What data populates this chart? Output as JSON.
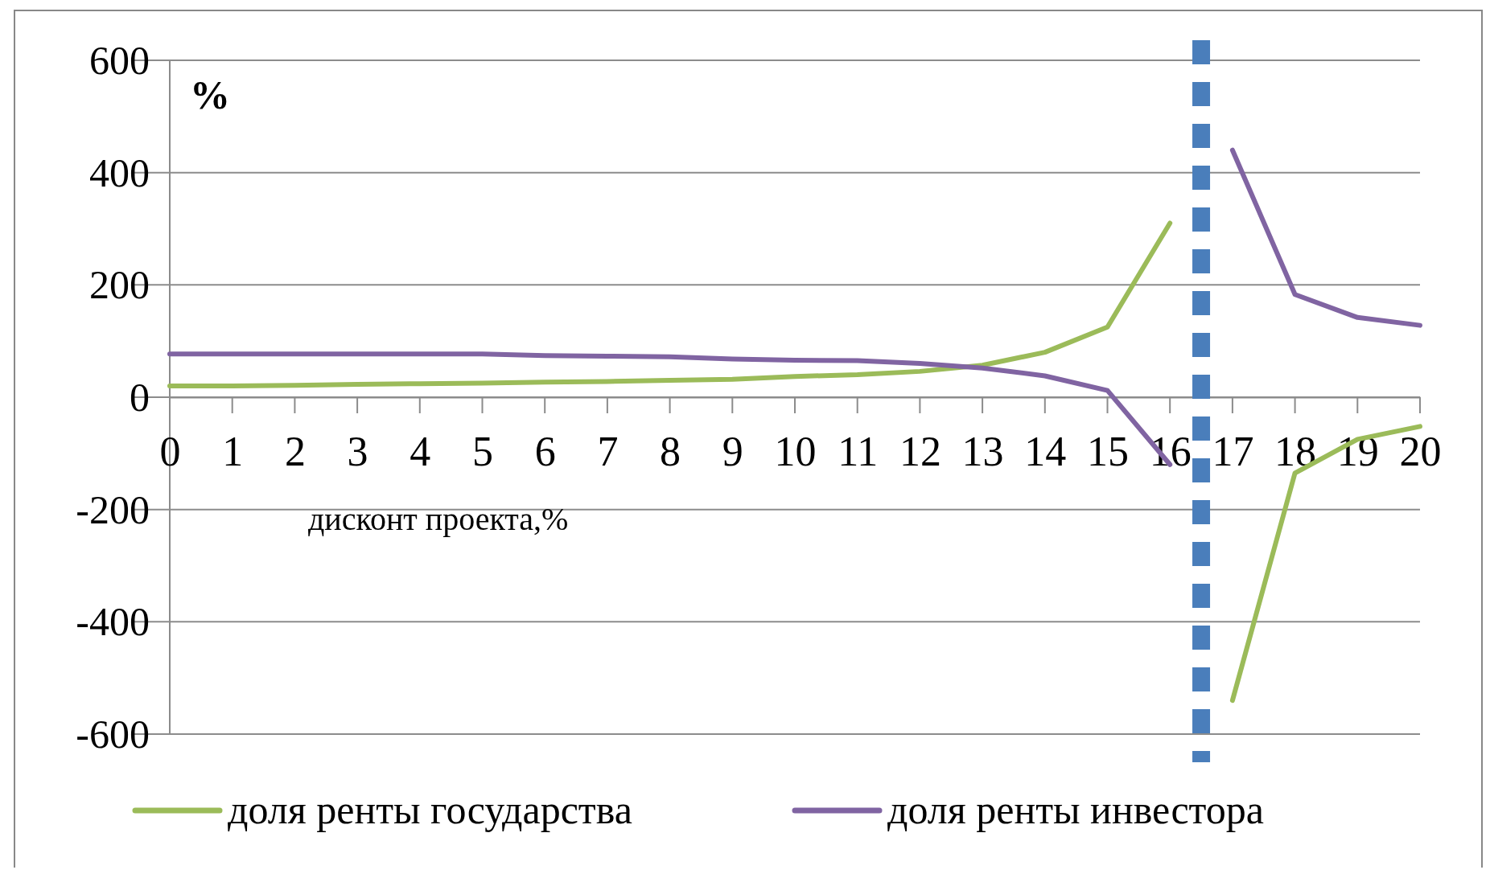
{
  "chart_data": {
    "type": "line",
    "ylabel": "%",
    "xlabel": "дисконт проекта,%",
    "x": [
      0,
      1,
      2,
      3,
      4,
      5,
      6,
      7,
      8,
      9,
      10,
      11,
      12,
      13,
      14,
      15,
      16,
      17,
      18,
      19,
      20
    ],
    "xlim": [
      0,
      20
    ],
    "xticks": [
      0,
      1,
      2,
      3,
      4,
      5,
      6,
      7,
      8,
      9,
      10,
      11,
      12,
      13,
      14,
      15,
      16,
      17,
      18,
      19,
      20
    ],
    "ylim": [
      -600,
      600
    ],
    "yticks": [
      -600,
      -400,
      -200,
      0,
      200,
      400,
      600
    ],
    "series": [
      {
        "name": "доля ренты государства",
        "color": "#9bbb59",
        "values": [
          20,
          20,
          21,
          23,
          24,
          25,
          27,
          28,
          30,
          32,
          37,
          40,
          46,
          57,
          80,
          125,
          310,
          -540,
          -135,
          -75,
          -52
        ]
      },
      {
        "name": "доля ренты инвестора",
        "color": "#8064a2",
        "values": [
          77,
          77,
          77,
          77,
          77,
          77,
          74,
          73,
          72,
          68,
          66,
          65,
          60,
          52,
          38,
          12,
          -120,
          440,
          183,
          142,
          128
        ]
      }
    ],
    "ref_lines": [
      {
        "axis": "x",
        "value": 16.5,
        "color": "#4a7ebb",
        "line_style": "dashed"
      }
    ],
    "grid": "y",
    "legend": "bottom",
    "marker": "none",
    "line_style": "solid"
  }
}
